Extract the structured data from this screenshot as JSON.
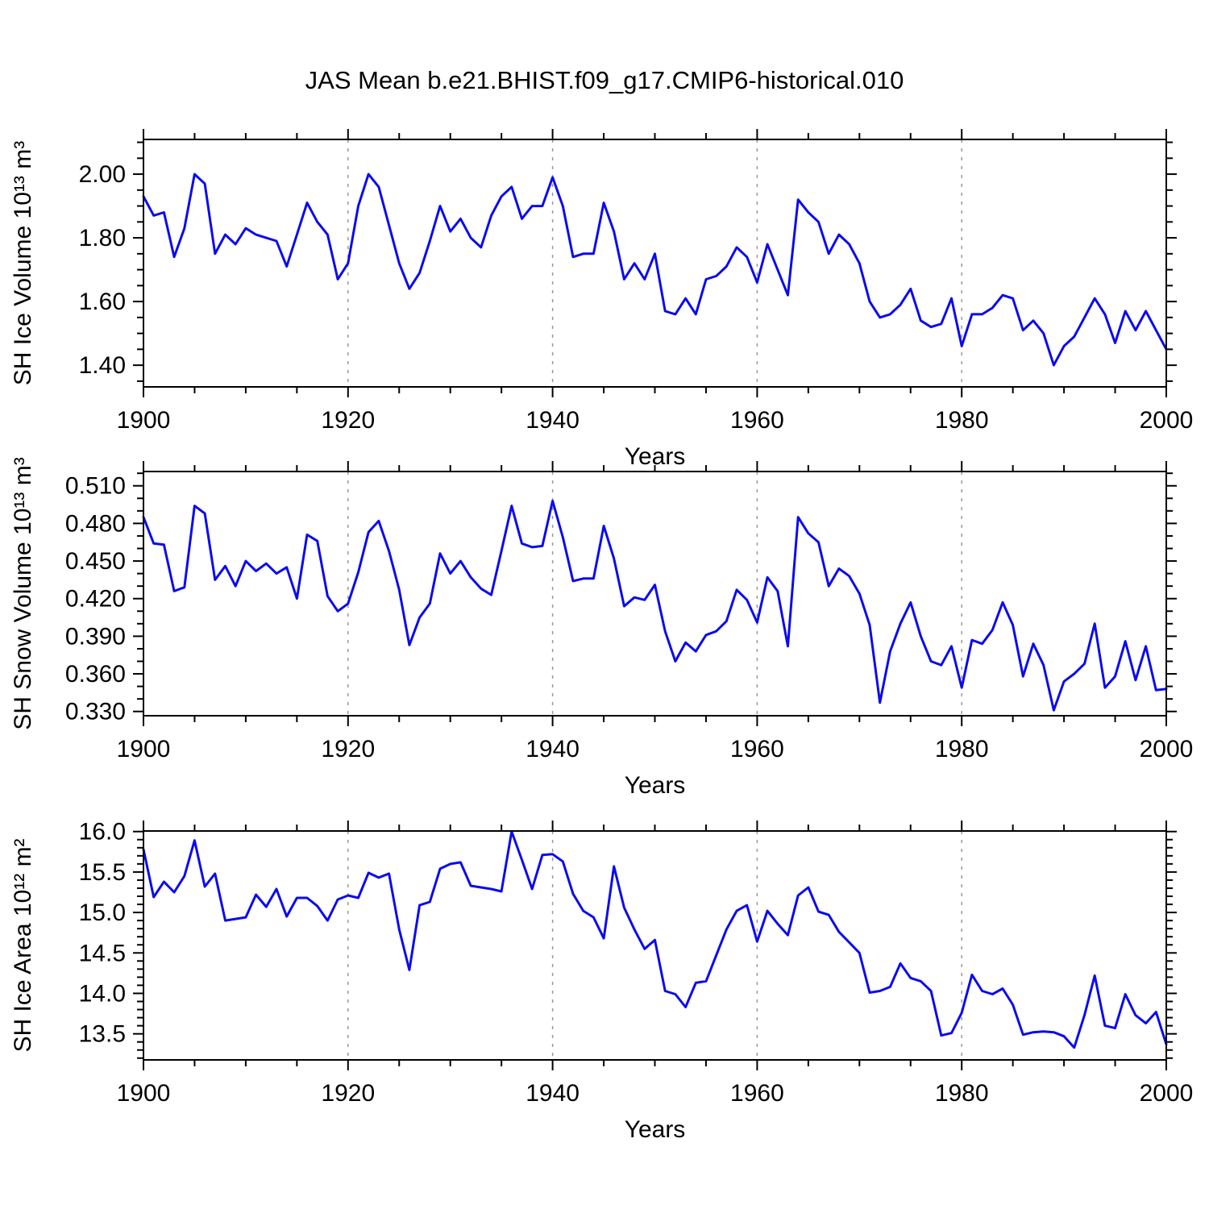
{
  "title": "JAS Mean b.e21.BHIST.f09_g17.CMIP6-historical.010",
  "line_color": "#0b0bee",
  "grid_color": "#999999",
  "axis_color": "#000000",
  "years": [
    1900,
    1901,
    1902,
    1903,
    1904,
    1905,
    1906,
    1907,
    1908,
    1909,
    1910,
    1911,
    1912,
    1913,
    1914,
    1915,
    1916,
    1917,
    1918,
    1919,
    1920,
    1921,
    1922,
    1923,
    1924,
    1925,
    1926,
    1927,
    1928,
    1929,
    1930,
    1931,
    1932,
    1933,
    1934,
    1935,
    1936,
    1937,
    1938,
    1939,
    1940,
    1941,
    1942,
    1943,
    1944,
    1945,
    1946,
    1947,
    1948,
    1949,
    1950,
    1951,
    1952,
    1953,
    1954,
    1955,
    1956,
    1957,
    1958,
    1959,
    1960,
    1961,
    1962,
    1963,
    1964,
    1965,
    1966,
    1967,
    1968,
    1969,
    1970,
    1971,
    1972,
    1973,
    1974,
    1975,
    1976,
    1977,
    1978,
    1979,
    1980,
    1981,
    1982,
    1983,
    1984,
    1985,
    1986,
    1987,
    1988,
    1989,
    1990,
    1991,
    1992,
    1993,
    1994,
    1995,
    1996,
    1997,
    1998,
    1999,
    2000
  ],
  "chart_data": [
    {
      "id": "ice-volume",
      "type": "line",
      "ylabel": "SH Ice Volume 10¹³ m³",
      "xlabel": "Years",
      "xlim": [
        1900,
        2000
      ],
      "x_major_ticks": [
        1900,
        1920,
        1940,
        1960,
        1980,
        2000
      ],
      "x_minor_step": 5,
      "grid_x": [
        1920,
        1940,
        1960,
        1980
      ],
      "grid_on": "x-dashed",
      "legend": "none",
      "ylim": [
        1.332,
        2.109
      ],
      "y_tick_values": [
        1.4,
        1.6,
        1.8,
        2.0
      ],
      "y_tick_labels": [
        "1.40",
        "1.60",
        "1.80",
        "2.00"
      ],
      "y_minor_step": 0.05,
      "values": [
        1.93,
        1.87,
        1.88,
        1.74,
        1.83,
        2.0,
        1.97,
        1.75,
        1.81,
        1.78,
        1.83,
        1.81,
        1.8,
        1.79,
        1.71,
        1.81,
        1.91,
        1.85,
        1.81,
        1.67,
        1.72,
        1.9,
        2.0,
        1.96,
        1.84,
        1.72,
        1.64,
        1.69,
        1.79,
        1.9,
        1.82,
        1.86,
        1.8,
        1.77,
        1.87,
        1.93,
        1.96,
        1.86,
        1.9,
        1.9,
        1.99,
        1.9,
        1.74,
        1.75,
        1.75,
        1.91,
        1.82,
        1.67,
        1.72,
        1.67,
        1.75,
        1.57,
        1.56,
        1.61,
        1.56,
        1.67,
        1.68,
        1.71,
        1.77,
        1.74,
        1.66,
        1.78,
        1.7,
        1.62,
        1.92,
        1.88,
        1.85,
        1.75,
        1.81,
        1.78,
        1.72,
        1.6,
        1.55,
        1.56,
        1.59,
        1.64,
        1.54,
        1.52,
        1.53,
        1.61,
        1.46,
        1.56,
        1.56,
        1.58,
        1.62,
        1.61,
        1.51,
        1.54,
        1.5,
        1.4,
        1.46,
        1.49,
        1.55,
        1.61,
        1.56,
        1.47,
        1.57,
        1.51,
        1.57,
        1.51,
        1.45
      ]
    },
    {
      "id": "snow-volume",
      "type": "line",
      "ylabel": "SH Snow Volume 10¹³ m³",
      "xlabel": "Years",
      "xlim": [
        1900,
        2000
      ],
      "x_major_ticks": [
        1900,
        1920,
        1940,
        1960,
        1980,
        2000
      ],
      "x_minor_step": 5,
      "grid_x": [
        1920,
        1940,
        1960,
        1980
      ],
      "grid_on": "x-dashed",
      "legend": "none",
      "ylim": [
        0.3266,
        0.5214
      ],
      "y_tick_values": [
        0.33,
        0.36,
        0.39,
        0.42,
        0.45,
        0.48,
        0.51
      ],
      "y_tick_labels": [
        "0.330",
        "0.360",
        "0.390",
        "0.420",
        "0.450",
        "0.480",
        "0.510"
      ],
      "y_minor_step": 0.01,
      "values": [
        0.485,
        0.464,
        0.463,
        0.426,
        0.429,
        0.494,
        0.488,
        0.435,
        0.446,
        0.43,
        0.45,
        0.442,
        0.448,
        0.44,
        0.445,
        0.42,
        0.471,
        0.466,
        0.422,
        0.41,
        0.416,
        0.441,
        0.473,
        0.482,
        0.458,
        0.427,
        0.383,
        0.405,
        0.416,
        0.456,
        0.44,
        0.45,
        0.437,
        0.428,
        0.423,
        0.458,
        0.494,
        0.464,
        0.461,
        0.462,
        0.498,
        0.469,
        0.434,
        0.436,
        0.436,
        0.478,
        0.452,
        0.414,
        0.421,
        0.419,
        0.431,
        0.394,
        0.37,
        0.385,
        0.378,
        0.391,
        0.394,
        0.402,
        0.427,
        0.419,
        0.401,
        0.437,
        0.426,
        0.382,
        0.485,
        0.472,
        0.465,
        0.43,
        0.444,
        0.438,
        0.424,
        0.399,
        0.337,
        0.378,
        0.4,
        0.417,
        0.39,
        0.37,
        0.367,
        0.382,
        0.349,
        0.387,
        0.384,
        0.395,
        0.417,
        0.399,
        0.358,
        0.384,
        0.367,
        0.331,
        0.354,
        0.36,
        0.368,
        0.4,
        0.349,
        0.358,
        0.386,
        0.355,
        0.382,
        0.347,
        0.348
      ]
    },
    {
      "id": "ice-area",
      "type": "line",
      "ylabel": "SH Ice Area 10¹² m²",
      "xlabel": "Years",
      "xlim": [
        1900,
        2000
      ],
      "x_major_ticks": [
        1900,
        1920,
        1940,
        1960,
        1980,
        2000
      ],
      "x_minor_step": 5,
      "grid_x": [
        1920,
        1940,
        1960,
        1980
      ],
      "grid_on": "x-dashed",
      "legend": "none",
      "ylim": [
        13.178,
        16.007
      ],
      "y_tick_values": [
        13.5,
        14.0,
        14.5,
        15.0,
        15.5,
        16.0
      ],
      "y_tick_labels": [
        "13.5",
        "14.0",
        "14.5",
        "15.0",
        "15.5",
        "16.0"
      ],
      "y_minor_step": 0.1,
      "values": [
        15.78,
        15.19,
        15.38,
        15.25,
        15.45,
        15.89,
        15.32,
        15.48,
        14.9,
        14.92,
        14.94,
        15.22,
        15.07,
        15.29,
        14.95,
        15.18,
        15.18,
        15.08,
        14.9,
        15.16,
        15.21,
        15.18,
        15.49,
        15.43,
        15.48,
        14.79,
        14.29,
        15.09,
        15.13,
        15.54,
        15.6,
        15.62,
        15.33,
        15.31,
        15.29,
        15.26,
        16.0,
        15.65,
        15.29,
        15.71,
        15.72,
        15.63,
        15.23,
        15.02,
        14.94,
        14.68,
        15.57,
        15.06,
        14.79,
        14.55,
        14.66,
        14.03,
        13.99,
        13.83,
        14.13,
        14.15,
        14.47,
        14.79,
        15.02,
        15.09,
        14.64,
        15.02,
        14.86,
        14.72,
        15.21,
        15.31,
        15.01,
        14.97,
        14.76,
        14.63,
        14.5,
        14.01,
        14.03,
        14.08,
        14.37,
        14.19,
        14.15,
        14.03,
        13.48,
        13.51,
        13.76,
        14.23,
        14.03,
        13.99,
        14.06,
        13.86,
        13.49,
        13.52,
        13.53,
        13.52,
        13.47,
        13.33,
        13.73,
        14.22,
        13.6,
        13.57,
        13.99,
        13.73,
        13.63,
        13.77,
        13.37
      ]
    }
  ]
}
